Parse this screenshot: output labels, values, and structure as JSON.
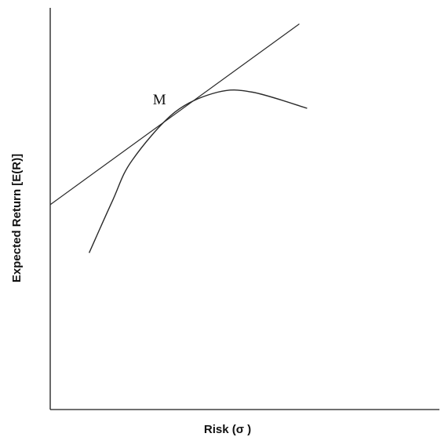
{
  "chart_data": {
    "type": "line",
    "title": "",
    "xlabel": "Risk (σ )",
    "ylabel": "Expected Return [E(R)]",
    "xlim": [
      0,
      10
    ],
    "ylim": [
      0,
      10
    ],
    "grid": false,
    "legend": "none",
    "ticks": "none",
    "series": [
      {
        "kind": "straight-line",
        "points": [
          {
            "x": 0.0,
            "y": 5.1
          },
          {
            "x": 6.4,
            "y": 9.6
          }
        ]
      },
      {
        "kind": "curve",
        "points": [
          {
            "x": 1.0,
            "y": 3.9
          },
          {
            "x": 1.6,
            "y": 5.2
          },
          {
            "x": 2.1,
            "y": 6.2
          },
          {
            "x": 3.2,
            "y": 7.4
          },
          {
            "x": 4.3,
            "y": 7.9
          },
          {
            "x": 5.2,
            "y": 7.9
          },
          {
            "x": 6.6,
            "y": 7.5
          }
        ]
      }
    ],
    "annotations": [
      {
        "text": "M",
        "x": 3.2,
        "y": 7.4
      }
    ]
  }
}
